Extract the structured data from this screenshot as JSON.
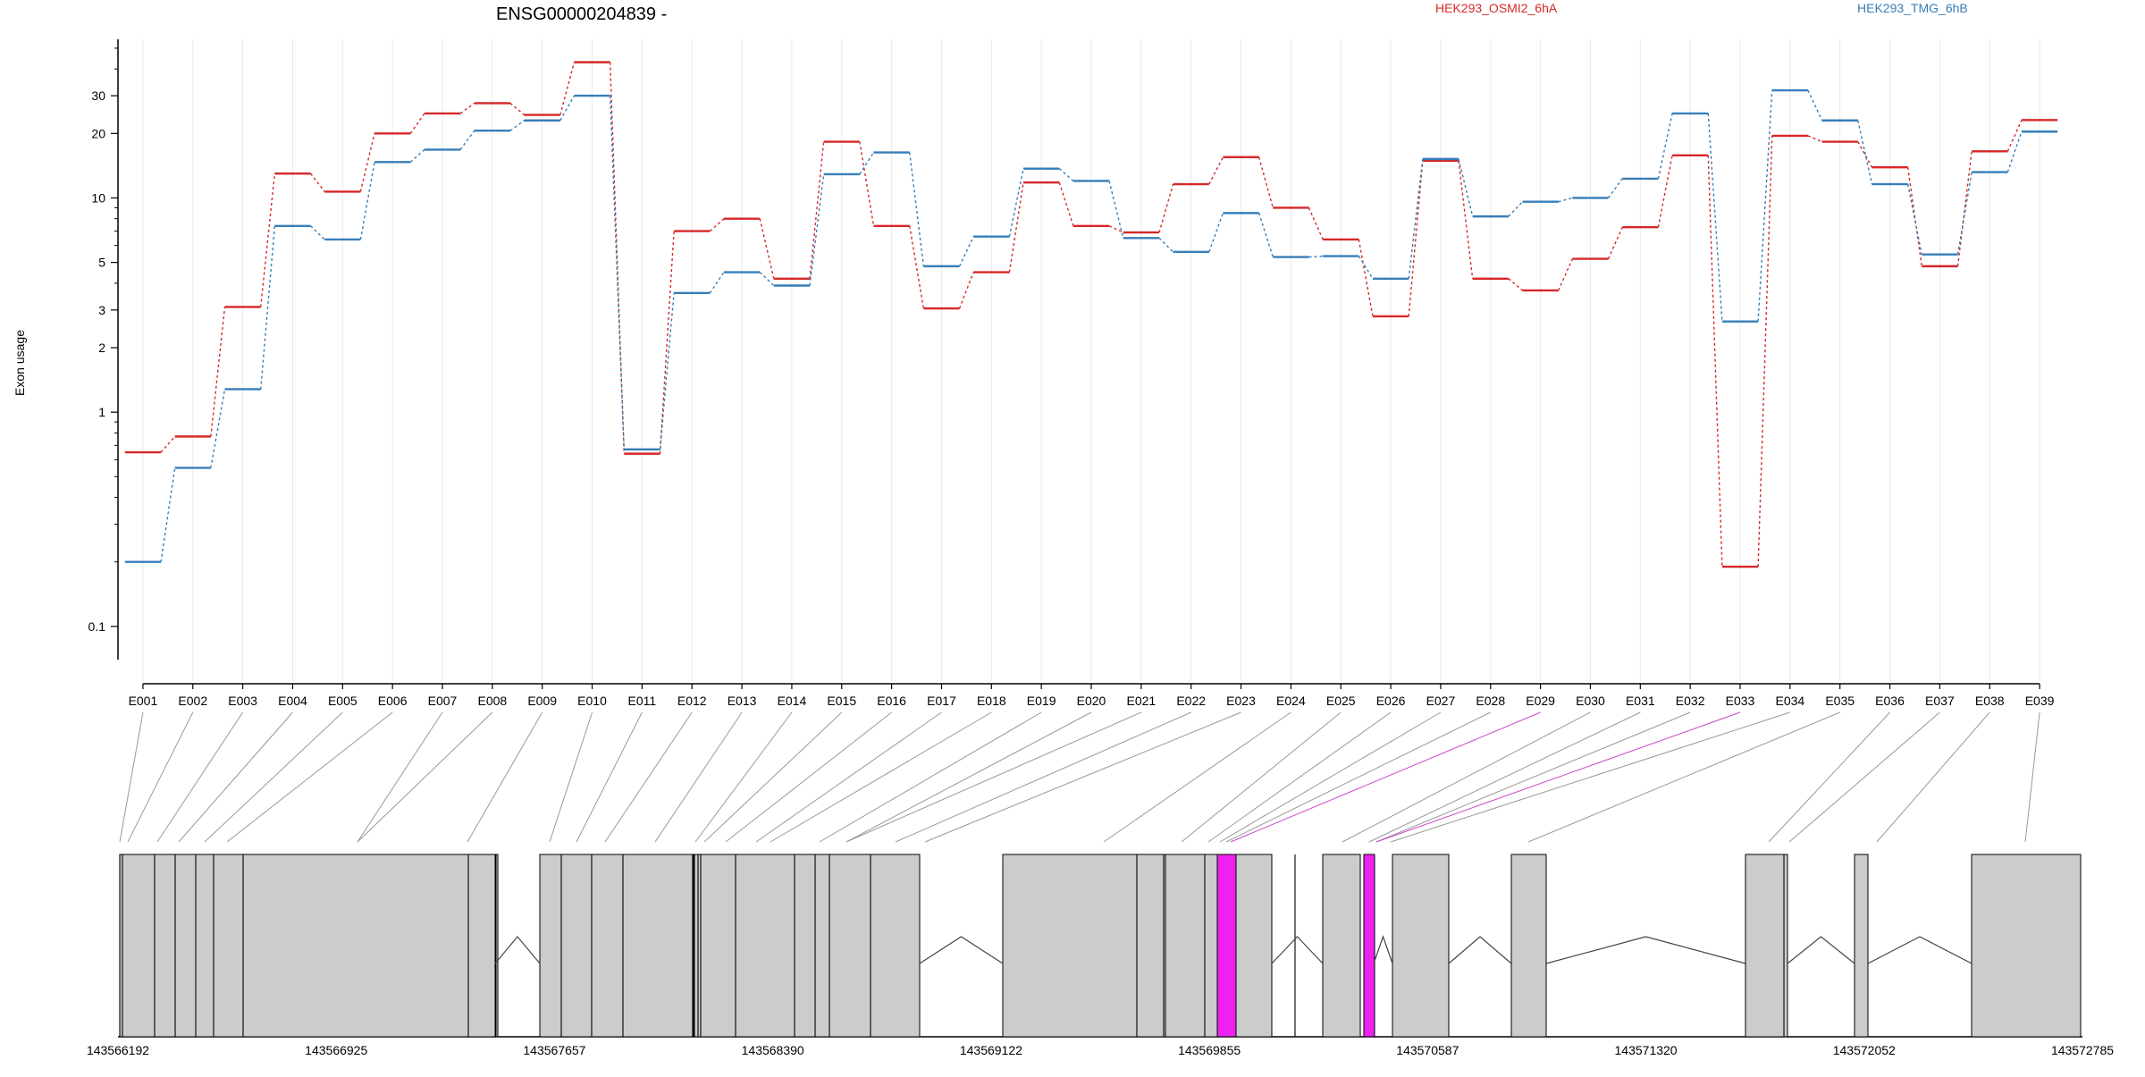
{
  "chart_data": {
    "type": "line",
    "title": "ENSG00000204839 -",
    "ylabel": "Exon usage",
    "xlabel": "",
    "y_scale": "log",
    "ylim": [
      0.07,
      55
    ],
    "y_ticks": [
      0.1,
      1,
      2,
      3,
      5,
      10,
      20,
      30
    ],
    "y_tick_labels": [
      "0.1",
      "1",
      "2",
      "3",
      "5",
      "10",
      "20",
      "30"
    ],
    "grid": true,
    "legend_position": "top-right",
    "colors": {
      "HEK293_OSMI2_6hA": "#d62728",
      "HEK293_TMG_6hB": "#377eb8",
      "highlight": "#ee22ee"
    },
    "categories": [
      "E001",
      "E002",
      "E003",
      "E004",
      "E005",
      "E006",
      "E007",
      "E008",
      "E009",
      "E010",
      "E011",
      "E012",
      "E013",
      "E014",
      "E015",
      "E016",
      "E017",
      "E018",
      "E019",
      "E020",
      "E021",
      "E022",
      "E023",
      "E024",
      "E025",
      "E026",
      "E027",
      "E028",
      "E029",
      "E030",
      "E031",
      "E032",
      "E033",
      "E034",
      "E035",
      "E036",
      "E037",
      "E038",
      "E039"
    ],
    "series": [
      {
        "name": "HEK293_OSMI2_6hA",
        "color": "#d62728",
        "values": [
          0.65,
          0.77,
          3.1,
          13.0,
          10.7,
          20.0,
          24.8,
          27.7,
          24.4,
          43.0,
          0.64,
          7.0,
          8.0,
          4.2,
          18.3,
          7.4,
          3.05,
          4.5,
          11.8,
          7.4,
          6.9,
          11.6,
          15.5,
          9.0,
          6.4,
          2.8,
          14.9,
          4.2,
          3.7,
          5.2,
          7.3,
          15.8,
          0.19,
          19.5,
          18.3,
          13.9,
          4.8,
          16.5,
          23.1
        ]
      },
      {
        "name": "HEK293_TMG_6hB",
        "color": "#377eb8",
        "values": [
          0.2,
          0.55,
          1.28,
          7.4,
          6.4,
          14.7,
          16.8,
          20.6,
          23.0,
          30.0,
          0.67,
          3.6,
          4.5,
          3.9,
          12.9,
          16.3,
          4.8,
          6.6,
          13.7,
          12.0,
          6.5,
          5.6,
          8.5,
          5.3,
          5.35,
          4.2,
          15.2,
          8.2,
          9.6,
          10.0,
          12.3,
          24.8,
          2.65,
          31.8,
          23.0,
          11.6,
          5.45,
          13.2,
          20.4
        ]
      }
    ],
    "gene_model": {
      "coordinate_labels": [
        "143566192",
        "143566925",
        "143567657",
        "143568390",
        "143569122",
        "143569855",
        "143570587",
        "143571320",
        "143572052",
        "143572785"
      ],
      "highlighted_exons": [
        "E029",
        "E033"
      ]
    }
  }
}
